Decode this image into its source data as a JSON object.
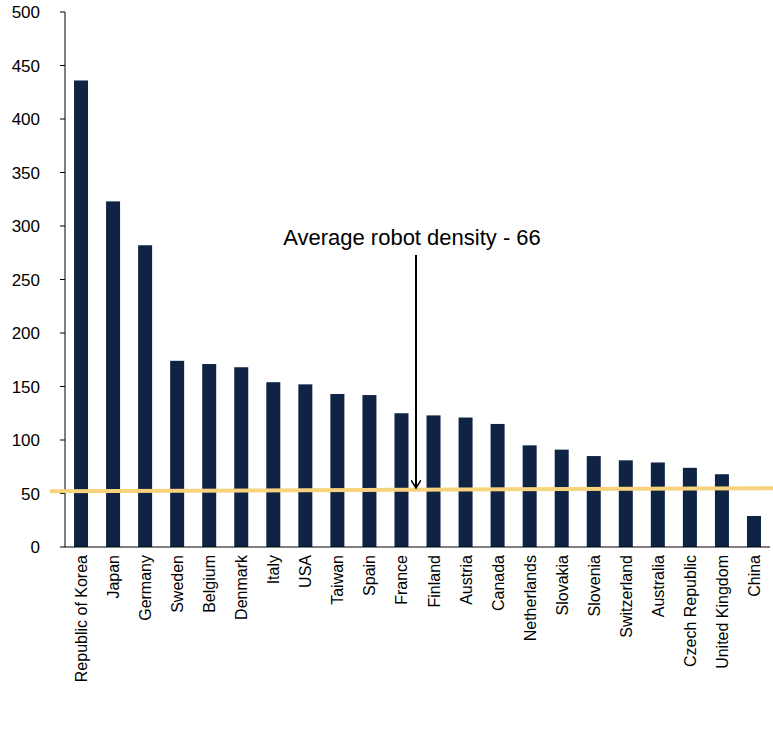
{
  "chart_data": {
    "type": "bar",
    "categories": [
      "Republic of Korea",
      "Japan",
      "Germany",
      "Sweden",
      "Belgium",
      "Denmark",
      "Italy",
      "USA",
      "Taiwan",
      "Spain",
      "France",
      "Finland",
      "Austria",
      "Canada",
      "Netherlands",
      "Slovakia",
      "Slovenia",
      "Switzerland",
      "Australia",
      "Czech Republic",
      "United Kingdom",
      "China"
    ],
    "values": [
      436,
      323,
      282,
      174,
      171,
      168,
      154,
      152,
      143,
      142,
      125,
      123,
      121,
      115,
      95,
      91,
      85,
      81,
      79,
      74,
      68,
      29
    ],
    "color": "#0f2344",
    "ylim": [
      0,
      500
    ],
    "yticks": [
      0,
      50,
      100,
      150,
      200,
      250,
      300,
      350,
      400,
      450,
      500
    ],
    "grid": false,
    "annotation": "Average robot density - 66",
    "reference_line": [
      52,
      55
    ],
    "reference_line_color": "#f6d37c"
  }
}
